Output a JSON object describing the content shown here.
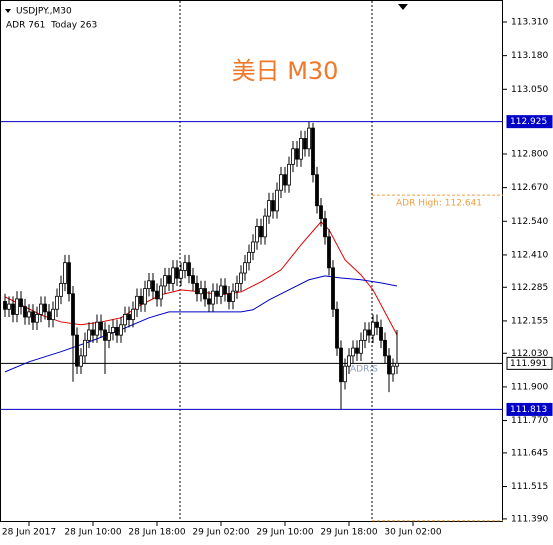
{
  "chart_data": {
    "type": "candlestick",
    "symbol": "USDJPY.,M30",
    "info": "ADR 761  Today 263",
    "title": "美日 M30",
    "open": [
      112.23,
      112.2,
      112.22,
      112.18,
      112.24,
      112.21,
      112.17,
      112.19,
      112.15,
      112.18,
      112.22,
      112.19,
      112.16,
      112.2,
      112.25,
      112.3,
      112.38,
      112.26,
      112.1,
      111.98,
      112.02,
      112.08,
      112.12,
      112.1,
      112.15,
      112.12,
      112.08,
      112.11,
      112.13,
      112.1,
      112.14,
      112.18,
      112.16,
      112.2,
      112.25,
      112.22,
      112.28,
      112.31,
      112.27,
      112.24,
      112.29,
      112.33,
      112.3,
      112.36,
      112.32,
      112.35,
      112.38,
      112.33,
      112.3,
      112.26,
      112.28,
      112.24,
      112.22,
      112.27,
      112.25,
      112.29,
      112.26,
      112.23,
      112.27,
      112.3,
      112.34,
      112.38,
      112.42,
      112.46,
      112.52,
      112.48,
      112.56,
      112.62,
      112.58,
      112.66,
      112.72,
      112.68,
      112.76,
      112.82,
      112.78,
      112.86,
      112.82,
      112.9,
      112.72,
      112.6,
      112.55,
      112.48,
      112.36,
      112.2,
      112.05,
      111.92,
      111.98,
      112.02,
      112.05,
      112.03,
      112.08,
      112.12,
      112.1,
      112.15,
      112.13,
      112.08,
      112.02,
      111.95,
      111.98
    ],
    "high": [
      112.26,
      112.25,
      112.25,
      112.27,
      112.27,
      112.24,
      112.22,
      112.22,
      112.21,
      112.25,
      112.25,
      112.22,
      112.23,
      112.28,
      112.33,
      112.41,
      112.41,
      112.29,
      112.13,
      112.05,
      112.11,
      112.15,
      112.15,
      112.18,
      112.18,
      112.15,
      112.14,
      112.16,
      112.16,
      112.17,
      112.21,
      112.21,
      112.23,
      112.28,
      112.28,
      112.31,
      112.34,
      112.34,
      112.3,
      112.32,
      112.36,
      112.36,
      112.39,
      112.39,
      112.38,
      112.41,
      112.41,
      112.36,
      112.33,
      112.31,
      112.31,
      112.27,
      112.3,
      112.3,
      112.32,
      112.32,
      112.29,
      112.3,
      112.33,
      112.37,
      112.41,
      112.45,
      112.49,
      112.55,
      112.55,
      112.59,
      112.65,
      112.65,
      112.69,
      112.75,
      112.75,
      112.79,
      112.85,
      112.85,
      112.89,
      112.89,
      112.925,
      112.92,
      112.75,
      112.63,
      112.58,
      112.51,
      112.39,
      112.23,
      112.08,
      112.01,
      112.05,
      112.08,
      112.08,
      112.11,
      112.15,
      112.15,
      112.18,
      112.18,
      112.16,
      112.11,
      112.05,
      112.01,
      112.12
    ],
    "low": [
      112.17,
      112.17,
      112.15,
      112.15,
      112.18,
      112.14,
      112.14,
      112.12,
      112.12,
      112.15,
      112.16,
      112.13,
      112.13,
      112.17,
      112.22,
      112.27,
      112.23,
      111.92,
      111.95,
      111.95,
      111.99,
      112.05,
      112.07,
      112.07,
      112.09,
      111.95,
      112.05,
      112.08,
      112.07,
      112.07,
      112.11,
      112.13,
      112.13,
      112.17,
      112.19,
      112.19,
      112.25,
      112.24,
      112.21,
      112.21,
      112.26,
      112.27,
      112.27,
      112.29,
      112.29,
      112.32,
      112.3,
      112.27,
      112.23,
      112.23,
      112.21,
      112.19,
      112.19,
      112.22,
      112.22,
      112.23,
      112.2,
      112.2,
      112.24,
      112.27,
      112.31,
      112.35,
      112.39,
      112.43,
      112.45,
      112.45,
      112.53,
      112.55,
      112.55,
      112.63,
      112.65,
      112.65,
      112.73,
      112.75,
      112.75,
      112.79,
      112.79,
      112.69,
      112.57,
      112.52,
      112.45,
      112.33,
      112.17,
      112.02,
      111.813,
      111.89,
      111.95,
      111.99,
      112.0,
      112.0,
      112.05,
      112.07,
      112.07,
      112.1,
      112.05,
      111.99,
      111.88,
      111.92,
      111.95
    ],
    "close": [
      112.2,
      112.22,
      112.18,
      112.24,
      112.21,
      112.17,
      112.19,
      112.15,
      112.18,
      112.22,
      112.19,
      112.16,
      112.2,
      112.25,
      112.3,
      112.38,
      112.26,
      112.1,
      111.98,
      112.02,
      112.08,
      112.12,
      112.1,
      112.15,
      112.12,
      112.08,
      112.11,
      112.13,
      112.1,
      112.14,
      112.18,
      112.16,
      112.2,
      112.25,
      112.22,
      112.28,
      112.31,
      112.27,
      112.24,
      112.29,
      112.33,
      112.3,
      112.36,
      112.32,
      112.35,
      112.38,
      112.33,
      112.3,
      112.26,
      112.28,
      112.24,
      112.22,
      112.27,
      112.25,
      112.29,
      112.26,
      112.23,
      112.27,
      112.3,
      112.34,
      112.38,
      112.42,
      112.46,
      112.52,
      112.48,
      112.56,
      112.62,
      112.58,
      112.66,
      112.72,
      112.68,
      112.76,
      112.82,
      112.78,
      112.86,
      112.82,
      112.9,
      112.72,
      112.6,
      112.55,
      112.48,
      112.36,
      112.2,
      112.05,
      111.92,
      111.98,
      112.02,
      112.05,
      112.03,
      112.08,
      112.12,
      112.1,
      112.15,
      112.13,
      112.08,
      112.02,
      111.95,
      111.98,
      111.991
    ],
    "candle_color": "#000000",
    "ma_lines": [
      {
        "color": "#e00000",
        "x": [
          0,
          4,
          9,
          14,
          19,
          24,
          29,
          34,
          39,
          44,
          49,
          54,
          59,
          64,
          69,
          74,
          79,
          81,
          85,
          89,
          92,
          96,
          98
        ],
        "values": [
          112.248,
          112.217,
          112.178,
          112.151,
          112.14,
          112.151,
          112.167,
          112.217,
          112.256,
          112.275,
          112.267,
          112.256,
          112.267,
          112.306,
          112.352,
          112.449,
          112.538,
          112.507,
          112.391,
          112.333,
          112.275,
          112.159,
          112.101
        ]
      },
      {
        "color": "#0000c8",
        "x": [
          0,
          6,
          14,
          21,
          29,
          36,
          41,
          49,
          54,
          59,
          62,
          66,
          71,
          76,
          80,
          84,
          89,
          94,
          98
        ],
        "values": [
          111.958,
          111.997,
          112.036,
          112.074,
          112.121,
          112.167,
          112.19,
          112.19,
          112.19,
          112.19,
          112.198,
          112.236,
          112.275,
          112.314,
          112.329,
          112.321,
          112.314,
          112.302,
          112.29
        ]
      }
    ],
    "levels": [
      {
        "value": 112.925,
        "color": "#0000c8"
      },
      {
        "value": 111.813,
        "color": "#0000c8"
      },
      {
        "value": 111.991,
        "color": "#000000"
      }
    ],
    "adr_high": {
      "value": 112.641,
      "label": "ADR High: 112.641",
      "color": "#f0a040"
    },
    "adr_low": {
      "value": 111.383,
      "color": "#f0a040"
    },
    "adr_tag": "ADR:S",
    "xlim": [
      -1.25,
      124.5
    ],
    "ylim": [
      111.378,
      113.395
    ],
    "xticks": [
      {
        "value": 6,
        "label": "28 Jun 2017"
      },
      {
        "value": 22,
        "label": "28 Jun 10:00"
      },
      {
        "value": 38,
        "label": "28 Jun 18:00"
      },
      {
        "value": 54,
        "label": "29 Jun 02:00"
      },
      {
        "value": 70,
        "label": "29 Jun 10:00"
      },
      {
        "value": 86,
        "label": "29 Jun 18:00"
      },
      {
        "value": 102,
        "label": "30 Jun 02:00"
      }
    ],
    "yticks": [
      {
        "value": 113.31,
        "label": "113.310"
      },
      {
        "value": 113.18,
        "label": "113.180"
      },
      {
        "value": 113.05,
        "label": "113.050"
      },
      {
        "value": 112.8,
        "label": "112.800"
      },
      {
        "value": 112.67,
        "label": "112.670"
      },
      {
        "value": 112.54,
        "label": "112.540"
      },
      {
        "value": 112.41,
        "label": "112.410"
      },
      112.285,
      112.155,
      {
        "value": 112.03,
        "label": "112.030"
      },
      {
        "value": 111.9,
        "label": "111.900"
      },
      {
        "value": 111.77,
        "label": "111.770"
      },
      111.645,
      111.515,
      {
        "value": 111.39,
        "label": "111.390"
      }
    ]
  }
}
